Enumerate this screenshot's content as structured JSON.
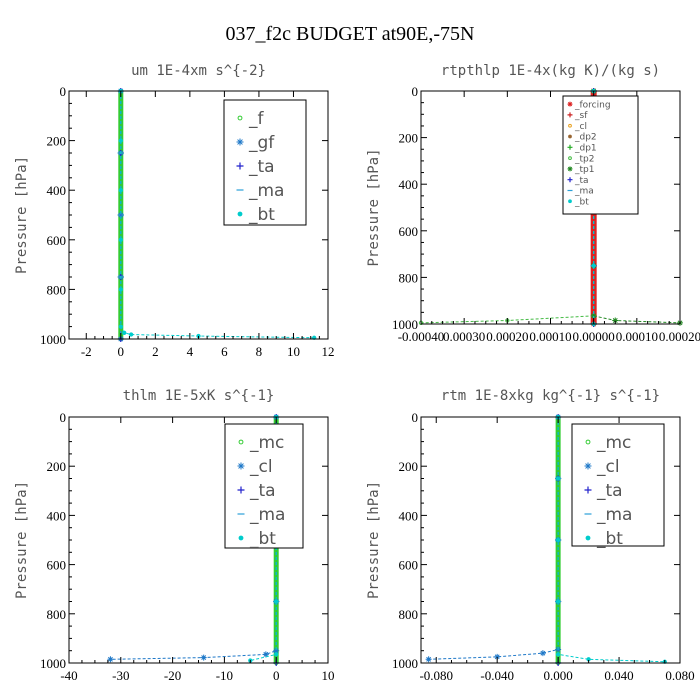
{
  "title": "037_f2c  BUDGET at90E,-75N",
  "chart_data": [
    {
      "type": "line",
      "title": "um  1E-4xm s^{-2}",
      "ylabel": "Pressure [hPa]",
      "xlim": [
        -3,
        12
      ],
      "ylim": [
        1000,
        0
      ],
      "xticks": [
        "-2",
        "0",
        "2",
        "4",
        "6",
        "8",
        "10",
        "12"
      ],
      "xtick_values": [
        -2,
        0,
        2,
        4,
        6,
        8,
        10,
        12
      ],
      "yticks": [
        "0",
        "200",
        "400",
        "600",
        "800",
        "1000"
      ],
      "ytick_values": [
        0,
        200,
        400,
        600,
        800,
        1000
      ],
      "legend_position": "top-right",
      "series": [
        {
          "name": "_f",
          "color": "#33cc33",
          "marker": "circle",
          "x": [
            0,
            0,
            0,
            0,
            0
          ],
          "y": [
            0,
            250,
            500,
            750,
            1000
          ]
        },
        {
          "name": "_gf",
          "color": "#1e78c8",
          "marker": "star",
          "x": [
            0,
            0,
            0,
            0,
            0
          ],
          "y": [
            0,
            250,
            500,
            750,
            1000
          ]
        },
        {
          "name": "_ta",
          "color": "#2222cc",
          "marker": "plus",
          "x": [
            0,
            0,
            0,
            0,
            0
          ],
          "y": [
            0,
            250,
            500,
            750,
            1000
          ]
        },
        {
          "name": "_ma",
          "color": "#2aa0d8",
          "marker": "dash",
          "x": [
            0,
            0,
            0,
            0,
            0
          ],
          "y": [
            0,
            250,
            500,
            750,
            1000
          ]
        },
        {
          "name": "_bt",
          "color": "#00cccc",
          "marker": "dot",
          "x": [
            0,
            0,
            0,
            0,
            0,
            0,
            0.2,
            0.6,
            4.5,
            11.2
          ],
          "y": [
            0,
            200,
            400,
            600,
            800,
            950,
            975,
            982,
            988,
            995
          ]
        }
      ]
    },
    {
      "type": "line",
      "title": "rtpthlp  1E-4x(kg K)/(kg s)",
      "ylabel": "Pressure [hPa]",
      "xlim": [
        -0.0004,
        0.0002
      ],
      "ylim": [
        1000,
        0
      ],
      "xticks": [
        "-0.00040",
        "0.00030",
        "0.00020",
        "0.00010",
        "0.00000",
        "0.00010",
        "0.00020"
      ],
      "xtick_values": [
        -0.0004,
        -0.0003,
        -0.0002,
        -0.0001,
        0,
        0.0001,
        0.0002
      ],
      "yticks": [
        "0",
        "200",
        "400",
        "600",
        "800",
        "1000"
      ],
      "ytick_values": [
        0,
        200,
        400,
        600,
        800,
        1000
      ],
      "legend_position": "top-right",
      "series": [
        {
          "name": "_forcing",
          "color": "#dd2222",
          "marker": "star",
          "x": [
            0,
            0,
            0,
            0,
            0
          ],
          "y": [
            0,
            250,
            500,
            750,
            1000
          ]
        },
        {
          "name": "_sf",
          "color": "#cc2222",
          "marker": "plus",
          "x": [
            0,
            0,
            0,
            0,
            0
          ],
          "y": [
            0,
            250,
            500,
            750,
            1000
          ]
        },
        {
          "name": "_cl",
          "color": "#e8a020",
          "marker": "circle",
          "x": [
            0,
            0,
            0,
            0,
            0
          ],
          "y": [
            0,
            250,
            500,
            750,
            1000
          ]
        },
        {
          "name": "_dp2",
          "color": "#996633",
          "marker": "dot",
          "x": [
            0,
            0,
            0,
            0,
            0
          ],
          "y": [
            0,
            250,
            500,
            750,
            1000
          ]
        },
        {
          "name": "_dp1",
          "color": "#22aa22",
          "marker": "plus",
          "x": [
            0,
            0,
            0,
            0,
            0
          ],
          "y": [
            0,
            250,
            500,
            750,
            1000
          ]
        },
        {
          "name": "_tp2",
          "color": "#44bb44",
          "marker": "circle",
          "x": [
            0,
            0,
            0,
            0,
            0,
            -0.0002,
            -0.0004
          ],
          "y": [
            0,
            250,
            500,
            750,
            965,
            985,
            995
          ]
        },
        {
          "name": "_tp1",
          "color": "#228822",
          "marker": "star",
          "x": [
            0,
            0,
            0,
            0,
            0,
            5e-05,
            0.0002
          ],
          "y": [
            0,
            250,
            500,
            750,
            965,
            985,
            995
          ]
        },
        {
          "name": "_ta",
          "color": "#2222cc",
          "marker": "plus",
          "x": [
            0,
            0,
            0,
            0,
            0
          ],
          "y": [
            0,
            250,
            500,
            750,
            1000
          ]
        },
        {
          "name": "_ma",
          "color": "#2aa0d8",
          "marker": "dash",
          "x": [
            0,
            0,
            0,
            0,
            0
          ],
          "y": [
            0,
            250,
            500,
            750,
            1000
          ]
        },
        {
          "name": "_bt",
          "color": "#00cccc",
          "marker": "dot",
          "x": [
            0,
            0,
            0,
            0,
            0
          ],
          "y": [
            0,
            250,
            500,
            750,
            1000
          ]
        }
      ]
    },
    {
      "type": "line",
      "title": "thlm  1E-5xK s^{-1}",
      "ylabel": "Pressure [hPa]",
      "xlim": [
        -40,
        10
      ],
      "ylim": [
        1000,
        0
      ],
      "xticks": [
        "-40",
        "-30",
        "-20",
        "-10",
        "0",
        "10"
      ],
      "xtick_values": [
        -40,
        -30,
        -20,
        -10,
        0,
        10
      ],
      "yticks": [
        "0",
        "200",
        "400",
        "600",
        "800",
        "1000"
      ],
      "ytick_values": [
        0,
        200,
        400,
        600,
        800,
        1000
      ],
      "legend_position": "top-right",
      "series": [
        {
          "name": "_mc",
          "color": "#33cc33",
          "marker": "circle",
          "x": [
            0,
            0,
            0,
            0,
            0
          ],
          "y": [
            0,
            250,
            500,
            750,
            1000
          ]
        },
        {
          "name": "_cl",
          "color": "#1e78c8",
          "marker": "star",
          "x": [
            0,
            0,
            0,
            0,
            0,
            -2,
            -14,
            -32
          ],
          "y": [
            0,
            250,
            500,
            750,
            950,
            965,
            978,
            985
          ]
        },
        {
          "name": "_ta",
          "color": "#2222cc",
          "marker": "plus",
          "x": [
            0,
            0,
            0,
            0,
            0
          ],
          "y": [
            0,
            250,
            500,
            750,
            1000
          ]
        },
        {
          "name": "_ma",
          "color": "#2aa0d8",
          "marker": "dash",
          "x": [
            0,
            0,
            0,
            0,
            0
          ],
          "y": [
            0,
            250,
            500,
            750,
            1000
          ]
        },
        {
          "name": "_bt",
          "color": "#00cccc",
          "marker": "dot",
          "x": [
            0,
            0,
            0,
            0,
            0,
            -5
          ],
          "y": [
            0,
            250,
            500,
            750,
            965,
            990
          ]
        }
      ]
    },
    {
      "type": "line",
      "title": "rtm  1E-8xkg kg^{-1} s^{-1}",
      "ylabel": "Pressure [hPa]",
      "xlim": [
        -0.09,
        0.08
      ],
      "ylim": [
        1000,
        0
      ],
      "xticks": [
        "-0.080",
        "-0.040",
        "0.000",
        "0.040",
        "0.080"
      ],
      "xtick_values": [
        -0.08,
        -0.04,
        0,
        0.04,
        0.08
      ],
      "yticks": [
        "0",
        "200",
        "400",
        "600",
        "800",
        "1000"
      ],
      "ytick_values": [
        0,
        200,
        400,
        600,
        800,
        1000
      ],
      "legend_position": "top-right",
      "series": [
        {
          "name": "_mc",
          "color": "#33cc33",
          "marker": "circle",
          "x": [
            0,
            0,
            0,
            0,
            0
          ],
          "y": [
            0,
            250,
            500,
            750,
            1000
          ]
        },
        {
          "name": "_cl",
          "color": "#1e78c8",
          "marker": "star",
          "x": [
            0,
            0,
            0,
            0,
            0,
            -0.01,
            -0.04,
            -0.085
          ],
          "y": [
            0,
            250,
            500,
            750,
            945,
            960,
            975,
            985
          ]
        },
        {
          "name": "_ta",
          "color": "#2222cc",
          "marker": "plus",
          "x": [
            0,
            0,
            0,
            0,
            0
          ],
          "y": [
            0,
            250,
            500,
            750,
            1000
          ]
        },
        {
          "name": "_ma",
          "color": "#2aa0d8",
          "marker": "dash",
          "x": [
            0,
            0,
            0,
            0,
            0
          ],
          "y": [
            0,
            250,
            500,
            750,
            1000
          ]
        },
        {
          "name": "_bt",
          "color": "#00cccc",
          "marker": "dot",
          "x": [
            0,
            0,
            0,
            0,
            0,
            0.02,
            0.07
          ],
          "y": [
            0,
            250,
            500,
            750,
            965,
            985,
            995
          ]
        }
      ]
    }
  ]
}
